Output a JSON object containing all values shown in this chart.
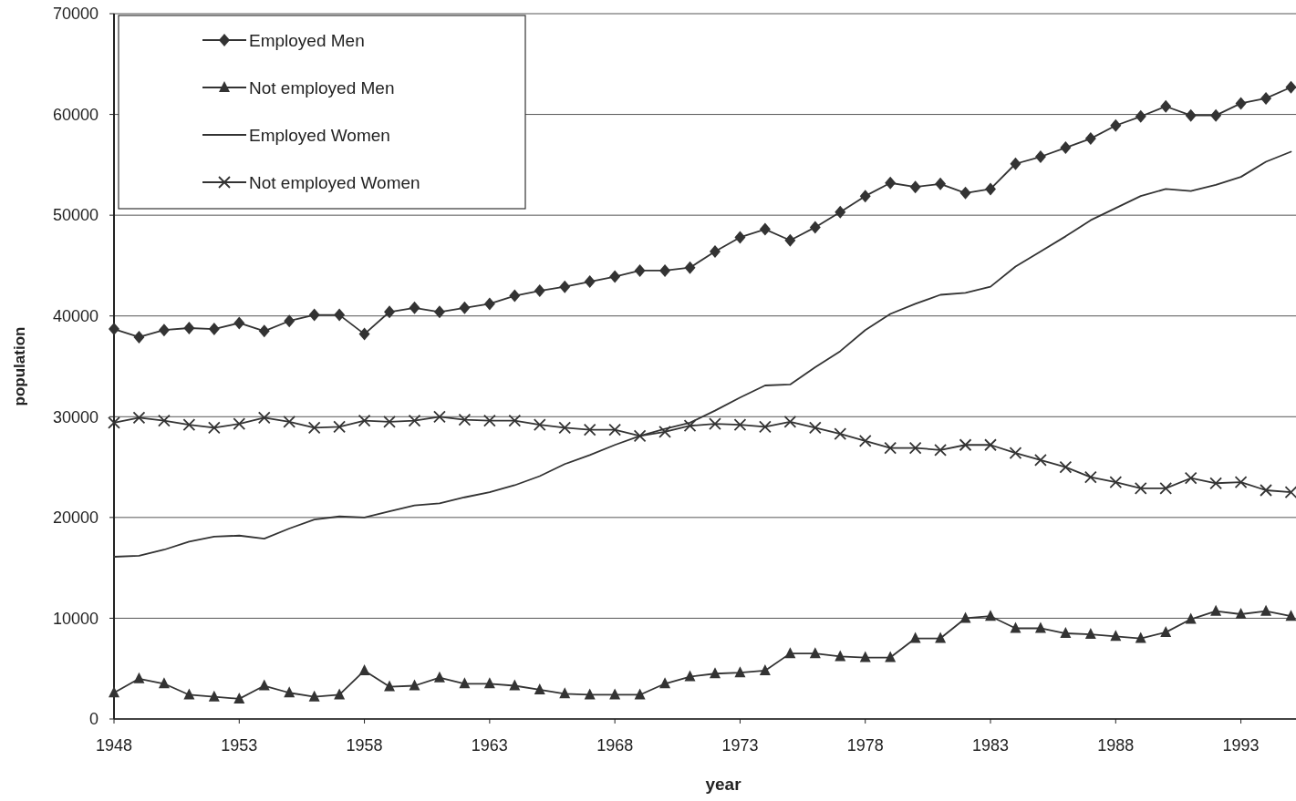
{
  "chart_data": {
    "type": "line",
    "xlabel": "year",
    "ylabel": "population",
    "x": [
      1948,
      1949,
      1950,
      1951,
      1952,
      1953,
      1954,
      1955,
      1956,
      1957,
      1958,
      1959,
      1960,
      1961,
      1962,
      1963,
      1964,
      1965,
      1966,
      1967,
      1968,
      1969,
      1970,
      1971,
      1972,
      1973,
      1974,
      1975,
      1976,
      1977,
      1978,
      1979,
      1980,
      1981,
      1982,
      1983,
      1984,
      1985,
      1986,
      1987,
      1988,
      1989,
      1990,
      1991,
      1992,
      1993,
      1994,
      1995
    ],
    "xlim": [
      1948,
      1995.2
    ],
    "xticks": [
      1948,
      1953,
      1958,
      1963,
      1968,
      1973,
      1978,
      1983,
      1988,
      1993
    ],
    "ylim": [
      0,
      70000
    ],
    "yticks": [
      0,
      10000,
      20000,
      30000,
      40000,
      50000,
      60000,
      70000
    ],
    "grid": "y",
    "legend": "top left",
    "series": [
      {
        "name": "Employed Men",
        "color": "#333333",
        "marker": "diamond",
        "values": [
          38700,
          37900,
          38600,
          38800,
          38700,
          39300,
          38500,
          39500,
          40100,
          40100,
          38200,
          40400,
          40800,
          40400,
          40800,
          41200,
          42000,
          42500,
          42900,
          43400,
          43900,
          44500,
          44500,
          44800,
          46400,
          47800,
          48600,
          47500,
          48800,
          50300,
          51900,
          53200,
          52800,
          53100,
          52200,
          52600,
          55100,
          55800,
          56700,
          57600,
          58900,
          59800,
          60800,
          59900,
          59900,
          61100,
          61600,
          62700
        ]
      },
      {
        "name": "Not employed Men",
        "color": "#333333",
        "marker": "triangle",
        "values": [
          2600,
          4000,
          3500,
          2400,
          2200,
          2000,
          3300,
          2600,
          2200,
          2400,
          4800,
          3200,
          3300,
          4100,
          3500,
          3500,
          3300,
          2900,
          2500,
          2400,
          2400,
          2400,
          3500,
          4200,
          4500,
          4600,
          4800,
          6500,
          6500,
          6200,
          6100,
          6100,
          8000,
          8000,
          10000,
          10200,
          9000,
          9000,
          8500,
          8400,
          8200,
          8000,
          8600,
          9900,
          10700,
          10400,
          10700,
          10200
        ]
      },
      {
        "name": "Employed Women",
        "color": "#333333",
        "marker": "none",
        "values": [
          16100,
          16200,
          16800,
          17600,
          18100,
          18200,
          17900,
          18900,
          19800,
          20100,
          20000,
          20600,
          21200,
          21400,
          22000,
          22500,
          23200,
          24100,
          25300,
          26200,
          27200,
          28100,
          28800,
          29400,
          30600,
          31900,
          33100,
          33200,
          34900,
          36500,
          38600,
          40200,
          41200,
          42100,
          42300,
          42900,
          44900,
          46400,
          47900,
          49500,
          50700,
          51900,
          52600,
          52400,
          53000,
          53800,
          55300,
          56300
        ]
      },
      {
        "name": "Not employed Women",
        "color": "#333333",
        "marker": "cross",
        "values": [
          29400,
          29900,
          29600,
          29200,
          28900,
          29300,
          29900,
          29500,
          28900,
          29000,
          29600,
          29500,
          29600,
          30000,
          29700,
          29600,
          29600,
          29200,
          28900,
          28700,
          28700,
          28100,
          28500,
          29100,
          29300,
          29200,
          29000,
          29500,
          28900,
          28300,
          27600,
          26900,
          26900,
          26700,
          27200,
          27200,
          26400,
          25700,
          25000,
          24000,
          23500,
          22900,
          22900,
          23900,
          23400,
          23500,
          22700,
          22500
        ]
      }
    ]
  }
}
